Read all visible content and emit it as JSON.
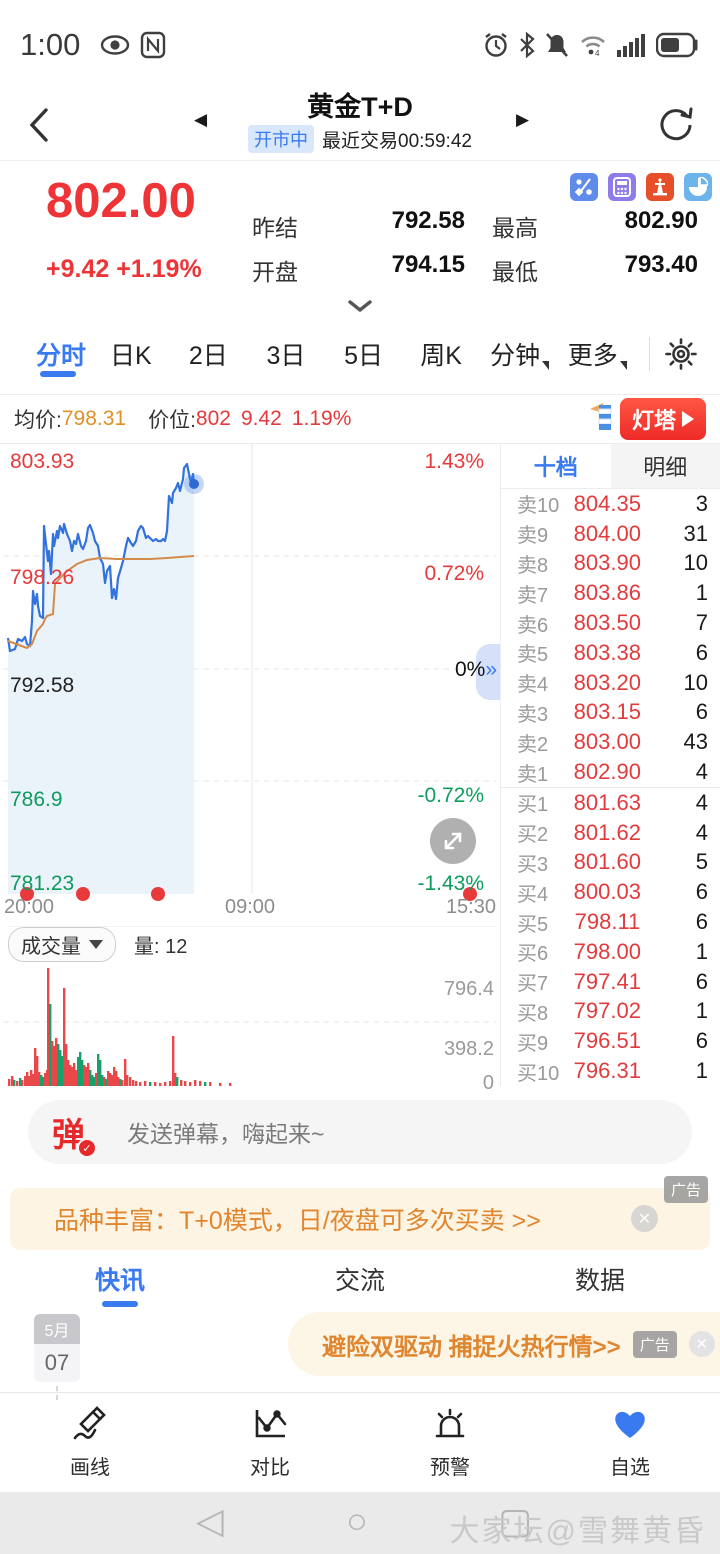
{
  "status_bar": {
    "time": "1:00"
  },
  "header": {
    "title": "黄金T+D",
    "market_status": "开市中",
    "last_trade": "最近交易00:59:42"
  },
  "quote": {
    "price": "802.00",
    "change": "+9.42 +1.19%",
    "stats": [
      {
        "label": "昨结",
        "value": "792.58"
      },
      {
        "label": "最高",
        "value": "802.90"
      },
      {
        "label": "开盘",
        "value": "794.15"
      },
      {
        "label": "最低",
        "value": "793.40"
      }
    ]
  },
  "period_tabs": {
    "active": "分时",
    "items": [
      "分时",
      "日K",
      "2日",
      "3日",
      "5日",
      "周K",
      "分钟",
      "更多"
    ]
  },
  "chart_info": {
    "avg_label": "均价:",
    "avg_value": "798.31",
    "price_label": "价位:",
    "price_value": "802",
    "change_value": "9.42",
    "pct_value": "1.19%",
    "beacon_label": "灯塔"
  },
  "chart_data": {
    "type": "line",
    "title": "黄金T+D 分时图",
    "ylim": [
      781.23,
      803.93
    ],
    "prev_close": 792.58,
    "y_axis_left": [
      "803.93",
      "798.26",
      "792.58",
      "786.9",
      "781.23"
    ],
    "y_axis_right": [
      "1.43%",
      "0.72%",
      "0%",
      "-0.72%",
      "-1.43%"
    ],
    "x_labels": [
      "20:00",
      "09:00",
      "15:30"
    ],
    "series": [
      {
        "name": "price",
        "color": "#3172dd",
        "points": [
          [
            0,
            194
          ],
          [
            2,
            207
          ],
          [
            7,
            205
          ],
          [
            10,
            195
          ],
          [
            14,
            197
          ],
          [
            17,
            193
          ],
          [
            19,
            200
          ],
          [
            22,
            202
          ],
          [
            24,
            177
          ],
          [
            25,
            147
          ],
          [
            27,
            160
          ],
          [
            29,
            150
          ],
          [
            30,
            162
          ],
          [
            32,
            172
          ],
          [
            35,
            174
          ],
          [
            36,
            82
          ],
          [
            38,
            100
          ],
          [
            40,
            117
          ],
          [
            41,
            107
          ],
          [
            43,
            130
          ],
          [
            45,
            90
          ],
          [
            46,
            102
          ],
          [
            49,
            87
          ],
          [
            50,
            94
          ],
          [
            52,
            82
          ],
          [
            55,
            89
          ],
          [
            56,
            80
          ],
          [
            59,
            90
          ],
          [
            62,
            97
          ],
          [
            64,
            107
          ],
          [
            66,
            97
          ],
          [
            68,
            100
          ],
          [
            70,
            90
          ],
          [
            73,
            102
          ],
          [
            75,
            105
          ],
          [
            78,
            97
          ],
          [
            80,
            84
          ],
          [
            82,
            81
          ],
          [
            85,
            89
          ],
          [
            87,
            97
          ],
          [
            90,
            102
          ],
          [
            92,
            114
          ],
          [
            95,
            120
          ],
          [
            97,
            139
          ],
          [
            99,
            127
          ],
          [
            102,
            122
          ],
          [
            104,
            154
          ],
          [
            106,
            145
          ],
          [
            108,
            155
          ],
          [
            110,
            134
          ],
          [
            113,
            124
          ],
          [
            115,
            117
          ],
          [
            118,
            102
          ],
          [
            120,
            94
          ],
          [
            123,
            99
          ],
          [
            125,
            102
          ],
          [
            128,
            97
          ],
          [
            130,
            87
          ],
          [
            133,
            82
          ],
          [
            135,
            84
          ],
          [
            138,
            94
          ],
          [
            140,
            92
          ],
          [
            143,
            95
          ],
          [
            145,
            97
          ],
          [
            148,
            95
          ],
          [
            150,
            97
          ],
          [
            153,
            97
          ],
          [
            155,
            95
          ],
          [
            157,
            97
          ],
          [
            159,
            87
          ],
          [
            161,
            52
          ],
          [
            164,
            59
          ],
          [
            165,
            49
          ],
          [
            168,
            44
          ],
          [
            170,
            39
          ],
          [
            172,
            47
          ],
          [
            175,
            35
          ],
          [
            176,
            24
          ],
          [
            179,
            20
          ],
          [
            181,
            30
          ],
          [
            183,
            39
          ],
          [
            185,
            30
          ],
          [
            186,
            40
          ]
        ]
      },
      {
        "name": "avg",
        "color": "#d28b4a",
        "points": [
          [
            0,
            197
          ],
          [
            19,
            204
          ],
          [
            24,
            200
          ],
          [
            29,
            187
          ],
          [
            35,
            180
          ],
          [
            37,
            175
          ],
          [
            39,
            172
          ],
          [
            45,
            170
          ],
          [
            47,
            140
          ],
          [
            52,
            134
          ],
          [
            59,
            127
          ],
          [
            69,
            120
          ],
          [
            79,
            116
          ],
          [
            92,
            114
          ],
          [
            109,
            115
          ],
          [
            125,
            115
          ],
          [
            142,
            115
          ],
          [
            159,
            114
          ],
          [
            172,
            113
          ],
          [
            186,
            112
          ]
        ]
      }
    ],
    "end_dot": [
      186,
      40
    ],
    "marker_dots_x": [
      19,
      75,
      150,
      462
    ],
    "volume": {
      "axis": [
        "796.4",
        "398.2",
        "0"
      ],
      "bars": [
        [
          0,
          7,
          1
        ],
        [
          3,
          10,
          1
        ],
        [
          5,
          6,
          0
        ],
        [
          8,
          5,
          1
        ],
        [
          11,
          8,
          0
        ],
        [
          13,
          6,
          1
        ],
        [
          16,
          10,
          1
        ],
        [
          18,
          14,
          1
        ],
        [
          20,
          10,
          1
        ],
        [
          22,
          16,
          1
        ],
        [
          24,
          12,
          1
        ],
        [
          26,
          38,
          1
        ],
        [
          28,
          30,
          1
        ],
        [
          30,
          14,
          1
        ],
        [
          32,
          11,
          0
        ],
        [
          34,
          9,
          0
        ],
        [
          36,
          13,
          1
        ],
        [
          38,
          16,
          1
        ],
        [
          39,
          118,
          1
        ],
        [
          41,
          82,
          0
        ],
        [
          43,
          45,
          1
        ],
        [
          45,
          40,
          1
        ],
        [
          47,
          48,
          1
        ],
        [
          49,
          42,
          0
        ],
        [
          51,
          36,
          0
        ],
        [
          53,
          30,
          0
        ],
        [
          55,
          98,
          1
        ],
        [
          57,
          42,
          1
        ],
        [
          59,
          26,
          1
        ],
        [
          61,
          21,
          1
        ],
        [
          63,
          19,
          1
        ],
        [
          65,
          23,
          1
        ],
        [
          67,
          16,
          1
        ],
        [
          69,
          29,
          0
        ],
        [
          71,
          34,
          0
        ],
        [
          73,
          26,
          0
        ],
        [
          75,
          21,
          1
        ],
        [
          77,
          19,
          1
        ],
        [
          79,
          23,
          1
        ],
        [
          81,
          16,
          0
        ],
        [
          83,
          11,
          0
        ],
        [
          85,
          9,
          0
        ],
        [
          87,
          13,
          1
        ],
        [
          89,
          32,
          0
        ],
        [
          91,
          26,
          0
        ],
        [
          93,
          11,
          0
        ],
        [
          95,
          9,
          1
        ],
        [
          97,
          7,
          0
        ],
        [
          99,
          15,
          1
        ],
        [
          101,
          13,
          1
        ],
        [
          103,
          11,
          1
        ],
        [
          105,
          19,
          1
        ],
        [
          107,
          15,
          1
        ],
        [
          109,
          9,
          1
        ],
        [
          111,
          7,
          0
        ],
        [
          113,
          6,
          1
        ],
        [
          116,
          27,
          1
        ],
        [
          118,
          11,
          1
        ],
        [
          121,
          9,
          1
        ],
        [
          124,
          6,
          1
        ],
        [
          127,
          5,
          1
        ],
        [
          131,
          4,
          1
        ],
        [
          136,
          5,
          1
        ],
        [
          141,
          4,
          0
        ],
        [
          146,
          4,
          1
        ],
        [
          151,
          3,
          1
        ],
        [
          156,
          4,
          1
        ],
        [
          161,
          5,
          1
        ],
        [
          164,
          50,
          1
        ],
        [
          166,
          13,
          1
        ],
        [
          168,
          9,
          0
        ],
        [
          172,
          6,
          1
        ],
        [
          176,
          5,
          1
        ],
        [
          181,
          4,
          1
        ],
        [
          186,
          6,
          1
        ],
        [
          191,
          5,
          1
        ],
        [
          196,
          4,
          0
        ],
        [
          201,
          4,
          1
        ],
        [
          211,
          3,
          1
        ],
        [
          221,
          3,
          1
        ]
      ]
    }
  },
  "volume_header": {
    "selector": "成交量",
    "amount": "量: 12"
  },
  "order_book": {
    "tabs": [
      "十档",
      "明细"
    ],
    "active": "十档",
    "sells": [
      [
        "卖10",
        "804.35",
        "3"
      ],
      [
        "卖9",
        "804.00",
        "31"
      ],
      [
        "卖8",
        "803.90",
        "10"
      ],
      [
        "卖7",
        "803.86",
        "1"
      ],
      [
        "卖6",
        "803.50",
        "7"
      ],
      [
        "卖5",
        "803.38",
        "6"
      ],
      [
        "卖4",
        "803.20",
        "10"
      ],
      [
        "卖3",
        "803.15",
        "6"
      ],
      [
        "卖2",
        "803.00",
        "43"
      ],
      [
        "卖1",
        "802.90",
        "4"
      ]
    ],
    "buys": [
      [
        "买1",
        "801.63",
        "4"
      ],
      [
        "买2",
        "801.62",
        "4"
      ],
      [
        "买3",
        "801.60",
        "5"
      ],
      [
        "买4",
        "800.03",
        "6"
      ],
      [
        "买5",
        "798.11",
        "6"
      ],
      [
        "买6",
        "798.00",
        "1"
      ],
      [
        "买7",
        "797.41",
        "6"
      ],
      [
        "买8",
        "797.02",
        "1"
      ],
      [
        "买9",
        "796.51",
        "6"
      ],
      [
        "买10",
        "796.31",
        "1"
      ]
    ]
  },
  "danmaku": {
    "icon": "弹",
    "placeholder": "发送弹幕，嗨起来~"
  },
  "ad_banner1": {
    "text": "品种丰富：T+0模式，日/夜盘可多次买卖 >>",
    "badge": "广告",
    "close": "✕"
  },
  "content_tabs": {
    "active": "快讯",
    "items": [
      "快讯",
      "交流",
      "数据"
    ]
  },
  "feed": {
    "date_month": "5月",
    "date_day": "07",
    "ad_text": "避险双驱动 捕捉火热行情>>",
    "ad_badge": "广告",
    "ad_close": "✕"
  },
  "toolbar": {
    "items": [
      "画线",
      "对比",
      "预警",
      "自选"
    ]
  },
  "sysnav": {
    "watermark": "大家坛@雪舞黄昏"
  },
  "colors": {
    "accent_blue": "#3a7af0",
    "up_red": "#ee3437",
    "down_green": "#0e9c5d",
    "avg_orange": "#d28b4a",
    "ad_orange": "#e0862f",
    "fill_blue": "#eaf2fa"
  }
}
